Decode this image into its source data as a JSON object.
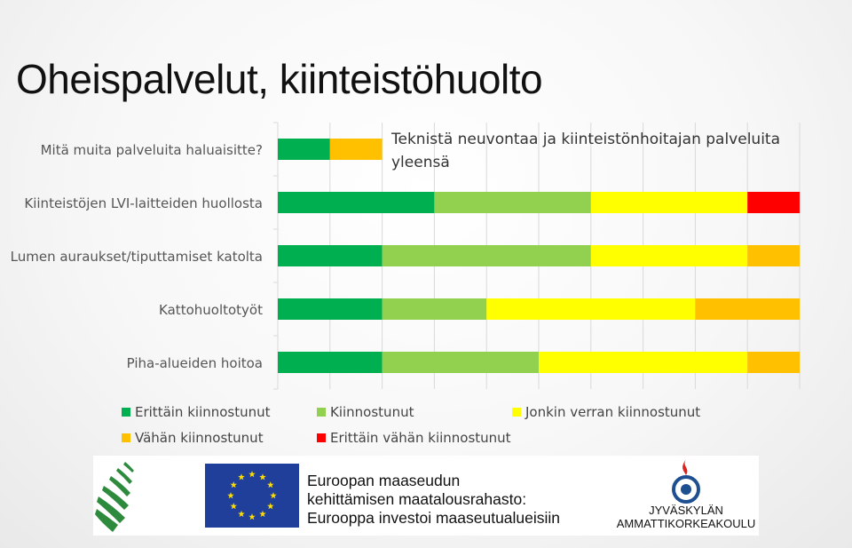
{
  "page": {
    "title": "Oheispalvelut, kiinteistöhuolto"
  },
  "logos": {
    "eu_line1": "Euroopan maaseudun",
    "eu_line2": "kehittämisen maatalousrahasto:",
    "eu_line3": "Eurooppa investoi maaseutualueisiin",
    "jamk_line1": "JYVÄSKYLÄN",
    "jamk_line2": "AMMATTIKORKEAKOULU"
  },
  "chart_data": {
    "type": "bar",
    "orientation": "horizontal",
    "stacked": true,
    "categories": [
      "Mitä muita palveluita haluaisitte?",
      "Kiinteistöjen LVI-laitteiden huollosta",
      "Lumen auraukset/tiputtamiset katolta",
      "Kattohuoltotyöt",
      "Piha-alueiden hoitoa"
    ],
    "annotation": "Teknistä neuvontaa ja kiinteistönhoitajan palveluita yleensä",
    "xlim": [
      0,
      10
    ],
    "grid": true,
    "legend_position": "bottom",
    "series": [
      {
        "name": "Erittäin kiinnostunut",
        "color": "#00b050",
        "values": [
          1,
          3,
          2,
          2,
          2
        ]
      },
      {
        "name": "Kiinnostunut",
        "color": "#92d050",
        "values": [
          0,
          3,
          4,
          2,
          3
        ]
      },
      {
        "name": "Jonkin verran kiinnostunut",
        "color": "#ffff00",
        "values": [
          0,
          3,
          3,
          4,
          4
        ]
      },
      {
        "name": "Vähän kiinnostunut",
        "color": "#ffc000",
        "values": [
          1,
          0,
          1,
          2,
          1
        ]
      },
      {
        "name": "Erittäin vähän kiinnostunut",
        "color": "#ff0000",
        "values": [
          0,
          1,
          0,
          0,
          0
        ]
      }
    ]
  }
}
